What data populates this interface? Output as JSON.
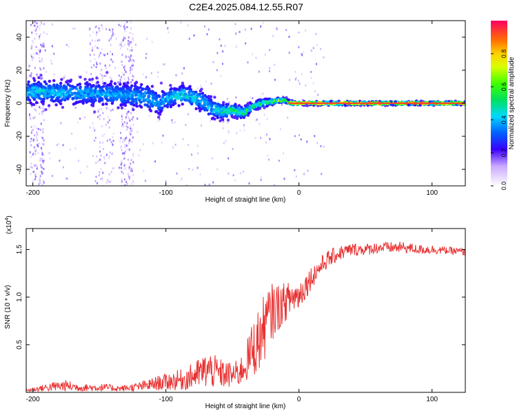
{
  "title": "C2E4.2025.084.12.55.R07",
  "chart_data": [
    {
      "type": "heatmap",
      "xlabel": "Height of straight line (km)",
      "ylabel": "Frequency (Hz)",
      "xlim": [
        -205,
        125
      ],
      "ylim": [
        -50,
        50
      ],
      "xticks": [
        -200,
        -100,
        0,
        100
      ],
      "yticks": [
        -40,
        -20,
        0,
        20,
        40
      ],
      "colorbar": {
        "label": "Normalized spectral amplitude",
        "range": [
          0,
          1
        ],
        "ticks": [
          0.0,
          0.2,
          0.4,
          0.6,
          0.8
        ]
      },
      "ridge": {
        "x": [
          -205,
          -190,
          -170,
          -150,
          -130,
          -115,
          -105,
          -95,
          -85,
          -75,
          -65,
          -58,
          -50,
          -42,
          -35,
          -28,
          -20,
          -12,
          -5,
          0,
          20,
          60,
          100,
          125
        ],
        "freq": [
          7,
          7,
          6,
          6,
          5,
          4,
          0,
          4,
          5,
          2,
          -3,
          -5,
          -4,
          -6,
          -2,
          0,
          1,
          2,
          0,
          0,
          0,
          0,
          0,
          0
        ],
        "spread": [
          6,
          6,
          6,
          6,
          6,
          7,
          6,
          5,
          5,
          5,
          5,
          4,
          3,
          3,
          2,
          2,
          1.5,
          1,
          1,
          0.8,
          0.8,
          0.8,
          0.8,
          0.8
        ],
        "peak_amplitude": [
          0.35,
          0.35,
          0.3,
          0.3,
          0.3,
          0.3,
          0.3,
          0.35,
          0.4,
          0.35,
          0.35,
          0.45,
          0.5,
          0.5,
          0.5,
          0.55,
          0.6,
          0.75,
          0.9,
          0.95,
          0.95,
          0.95,
          0.95,
          0.95
        ]
      },
      "scatter_bands_x": [
        [
          -203,
          -192
        ],
        [
          -158,
          -140
        ],
        [
          -135,
          -125
        ]
      ]
    },
    {
      "type": "line",
      "xlabel": "Height of straight line (km)",
      "ylabel": "SNR (10 * v/v)",
      "y_scale_label": "(x10",
      "y_scale_exponent": "4",
      "xlim": [
        -205,
        125
      ],
      "ylim": [
        0,
        1.72
      ],
      "xticks": [
        -200,
        -100,
        0,
        100
      ],
      "yticks": [
        0.5,
        1.0,
        1.5
      ],
      "color": "#e83030",
      "series": [
        {
          "x": [
            -205,
            -195,
            -185,
            -175,
            -165,
            -155,
            -145,
            -135,
            -125,
            -115,
            -105,
            -95,
            -85,
            -75,
            -68,
            -60,
            -52,
            -45,
            -40,
            -35,
            -30,
            -25,
            -20,
            -15,
            -10,
            -5,
            0,
            5,
            10,
            15,
            20,
            30,
            40,
            50,
            60,
            70,
            80,
            90,
            100,
            110,
            120,
            125
          ],
          "values": [
            0.02,
            0.04,
            0.06,
            0.07,
            0.05,
            0.05,
            0.05,
            0.04,
            0.05,
            0.07,
            0.1,
            0.12,
            0.14,
            0.2,
            0.24,
            0.2,
            0.18,
            0.2,
            0.3,
            0.45,
            0.55,
            0.72,
            0.85,
            0.9,
            0.95,
            1.0,
            1.02,
            1.12,
            1.22,
            1.3,
            1.38,
            1.46,
            1.5,
            1.5,
            1.52,
            1.52,
            1.52,
            1.5,
            1.5,
            1.49,
            1.48,
            1.47
          ],
          "noise": [
            0.02,
            0.03,
            0.05,
            0.06,
            0.04,
            0.04,
            0.04,
            0.03,
            0.04,
            0.06,
            0.08,
            0.1,
            0.12,
            0.16,
            0.2,
            0.16,
            0.14,
            0.14,
            0.2,
            0.3,
            0.35,
            0.35,
            0.3,
            0.25,
            0.2,
            0.18,
            0.16,
            0.14,
            0.12,
            0.1,
            0.1,
            0.08,
            0.07,
            0.06,
            0.06,
            0.06,
            0.06,
            0.05,
            0.05,
            0.04,
            0.04,
            0.04
          ]
        }
      ]
    }
  ]
}
